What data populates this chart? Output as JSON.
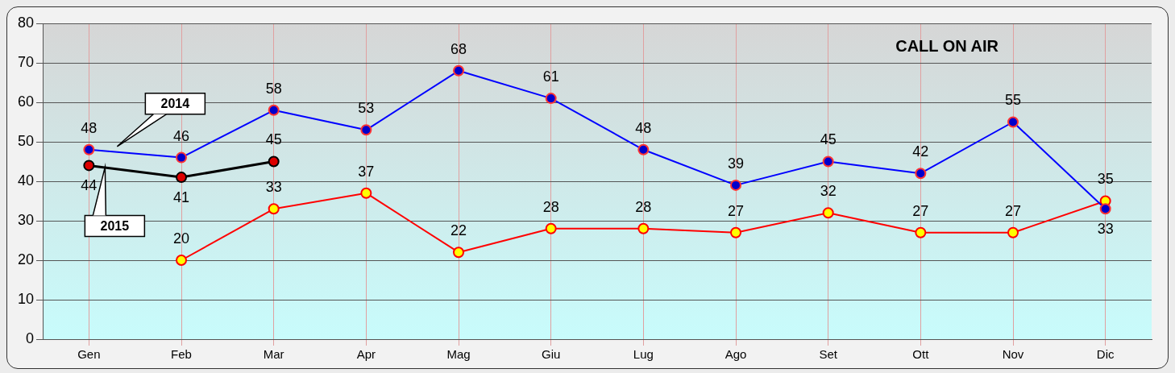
{
  "chart_data": {
    "type": "line",
    "title": "CALL ON AIR",
    "categories": [
      "Gen",
      "Feb",
      "Mar",
      "Apr",
      "Mag",
      "Giu",
      "Lug",
      "Ago",
      "Set",
      "Ott",
      "Nov",
      "Dic"
    ],
    "series": [
      {
        "name": "2014",
        "color": "#0000ff",
        "values": [
          48,
          46,
          58,
          53,
          68,
          61,
          48,
          39,
          45,
          42,
          55,
          33
        ]
      },
      {
        "color": "#ff0000",
        "values": [
          null,
          20,
          33,
          37,
          22,
          28,
          28,
          27,
          32,
          27,
          27,
          35
        ]
      },
      {
        "name": "2015",
        "color": "#000000",
        "values": [
          44,
          41,
          45,
          null,
          null,
          null,
          null,
          null,
          null,
          null,
          null,
          null
        ]
      }
    ],
    "ylim": [
      0,
      80
    ],
    "yticks": [
      0,
      10,
      20,
      30,
      40,
      50,
      60,
      70,
      80
    ],
    "grid": true,
    "legend": false,
    "marker": "circle",
    "line_style": "solid",
    "data_labels": true
  }
}
